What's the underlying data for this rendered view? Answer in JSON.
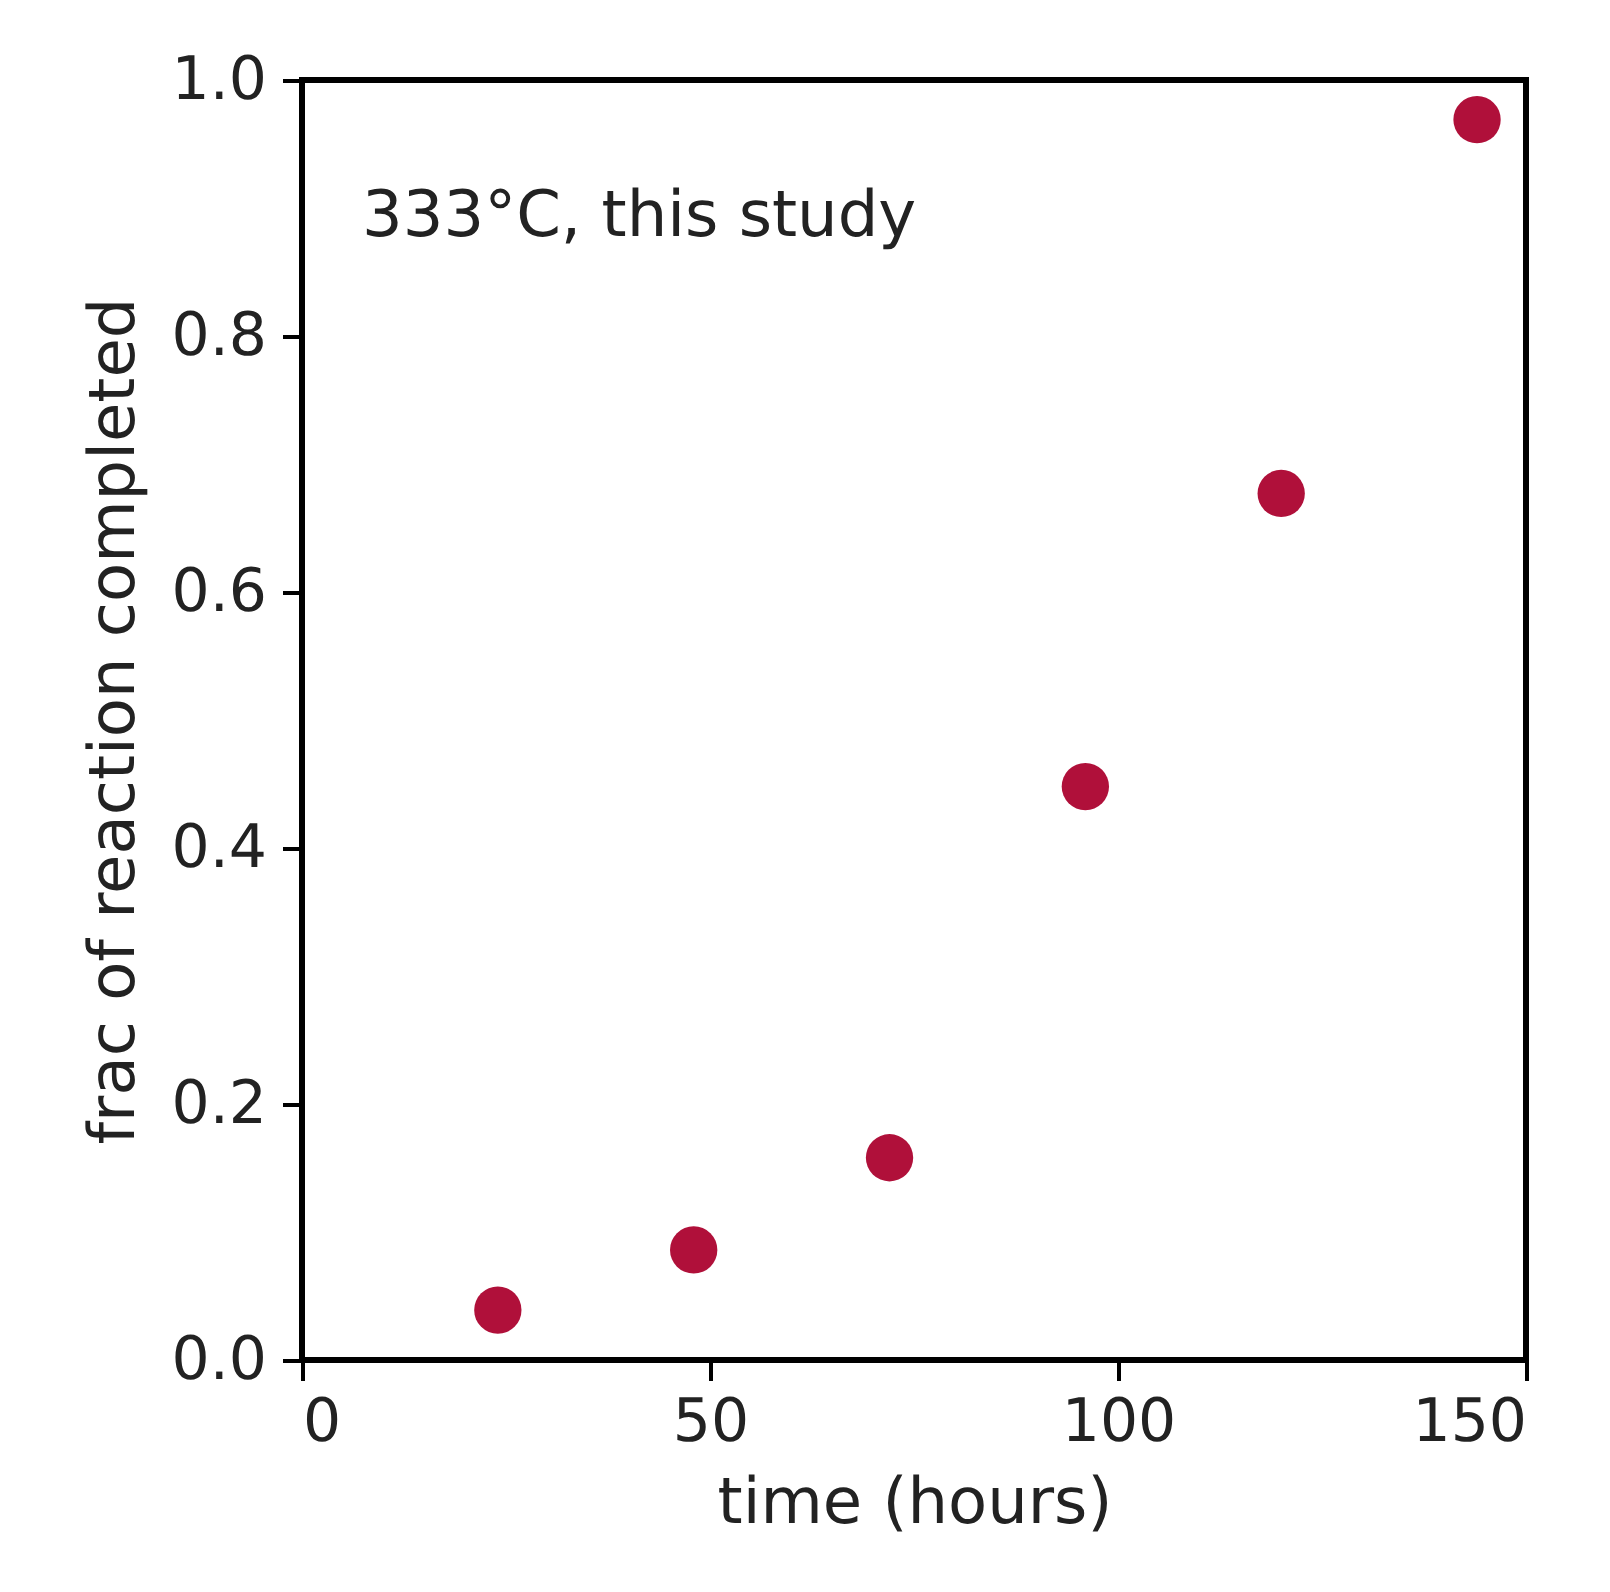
{
  "chart_data": {
    "type": "scatter",
    "xlabel": "time (hours)",
    "ylabel": "frac of reaction completed",
    "annotations": [
      "333°C, this study"
    ],
    "x": [
      24,
      48,
      72,
      96,
      120,
      144
    ],
    "series": [
      {
        "color": "#b0103a",
        "values": [
          0.039,
          0.086,
          0.158,
          0.448,
          0.677,
          0.969
        ]
      }
    ],
    "xlim": [
      0,
      150
    ],
    "xticks": [
      0,
      50,
      100,
      150
    ],
    "ylim": [
      0,
      1.0
    ],
    "yticks": [
      {
        "value": 0,
        "label": "0.0"
      },
      {
        "value": 0.2,
        "label": "0.2"
      },
      {
        "value": 0.4,
        "label": "0.4"
      },
      {
        "value": 0.6,
        "label": "0.6"
      },
      {
        "value": 0.8,
        "label": "0.8"
      },
      {
        "value": 1.0,
        "label": "1.0"
      }
    ],
    "marker": "circle",
    "grid": false,
    "legend": false
  }
}
